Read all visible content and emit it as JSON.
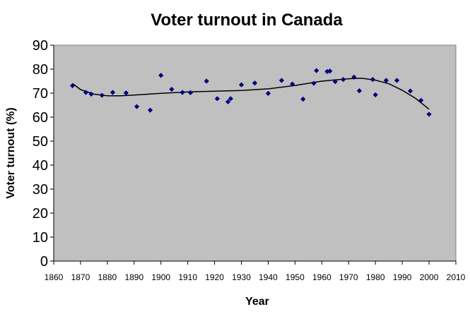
{
  "chart_data": {
    "type": "scatter",
    "title": "Voter turnout in Canada",
    "xlabel": "Year",
    "ylabel": "Voter turnout (%)",
    "xlim": [
      1860,
      2010
    ],
    "ylim": [
      0,
      90
    ],
    "xticks": [
      1860,
      1870,
      1880,
      1890,
      1900,
      1910,
      1920,
      1930,
      1940,
      1950,
      1960,
      1970,
      1980,
      1990,
      2000,
      2010
    ],
    "yticks": [
      0,
      10,
      20,
      30,
      40,
      50,
      60,
      70,
      80,
      90
    ],
    "grid": false,
    "background": "#c0c0c0",
    "marker_color": "#000080",
    "trendline_color": "#000000",
    "series": [
      {
        "points": [
          [
            1867,
            73.1
          ],
          [
            1872,
            70.3
          ],
          [
            1874,
            69.6
          ],
          [
            1878,
            69.1
          ],
          [
            1882,
            70.3
          ],
          [
            1887,
            70.1
          ],
          [
            1891,
            64.4
          ],
          [
            1896,
            62.9
          ],
          [
            1900,
            77.4
          ],
          [
            1904,
            71.6
          ],
          [
            1908,
            70.3
          ],
          [
            1911,
            70.2
          ],
          [
            1917,
            75.0
          ],
          [
            1921,
            67.7
          ],
          [
            1925,
            66.4
          ],
          [
            1926,
            67.7
          ],
          [
            1930,
            73.5
          ],
          [
            1935,
            74.2
          ],
          [
            1940,
            69.9
          ],
          [
            1945,
            75.3
          ],
          [
            1949,
            73.8
          ],
          [
            1953,
            67.5
          ],
          [
            1957,
            74.1
          ],
          [
            1958,
            79.4
          ],
          [
            1962,
            79.0
          ],
          [
            1963,
            79.2
          ],
          [
            1965,
            74.8
          ],
          [
            1968,
            75.7
          ],
          [
            1972,
            76.7
          ],
          [
            1974,
            71.0
          ],
          [
            1979,
            75.7
          ],
          [
            1980,
            69.3
          ],
          [
            1984,
            75.3
          ],
          [
            1988,
            75.3
          ],
          [
            1993,
            70.9
          ],
          [
            1997,
            67.0
          ],
          [
            2000,
            61.2
          ]
        ]
      }
    ],
    "trendline": [
      [
        1867,
        74.0
      ],
      [
        1870,
        71.5
      ],
      [
        1875,
        69.6
      ],
      [
        1880,
        68.9
      ],
      [
        1885,
        68.9
      ],
      [
        1890,
        69.2
      ],
      [
        1900,
        69.9
      ],
      [
        1910,
        70.5
      ],
      [
        1920,
        70.8
      ],
      [
        1930,
        71.1
      ],
      [
        1940,
        71.8
      ],
      [
        1950,
        73.2
      ],
      [
        1960,
        75.0
      ],
      [
        1965,
        75.5
      ],
      [
        1970,
        76.0
      ],
      [
        1975,
        76.2
      ],
      [
        1980,
        75.4
      ],
      [
        1985,
        73.9
      ],
      [
        1990,
        71.2
      ],
      [
        1995,
        67.8
      ],
      [
        2000,
        63.3
      ]
    ]
  }
}
